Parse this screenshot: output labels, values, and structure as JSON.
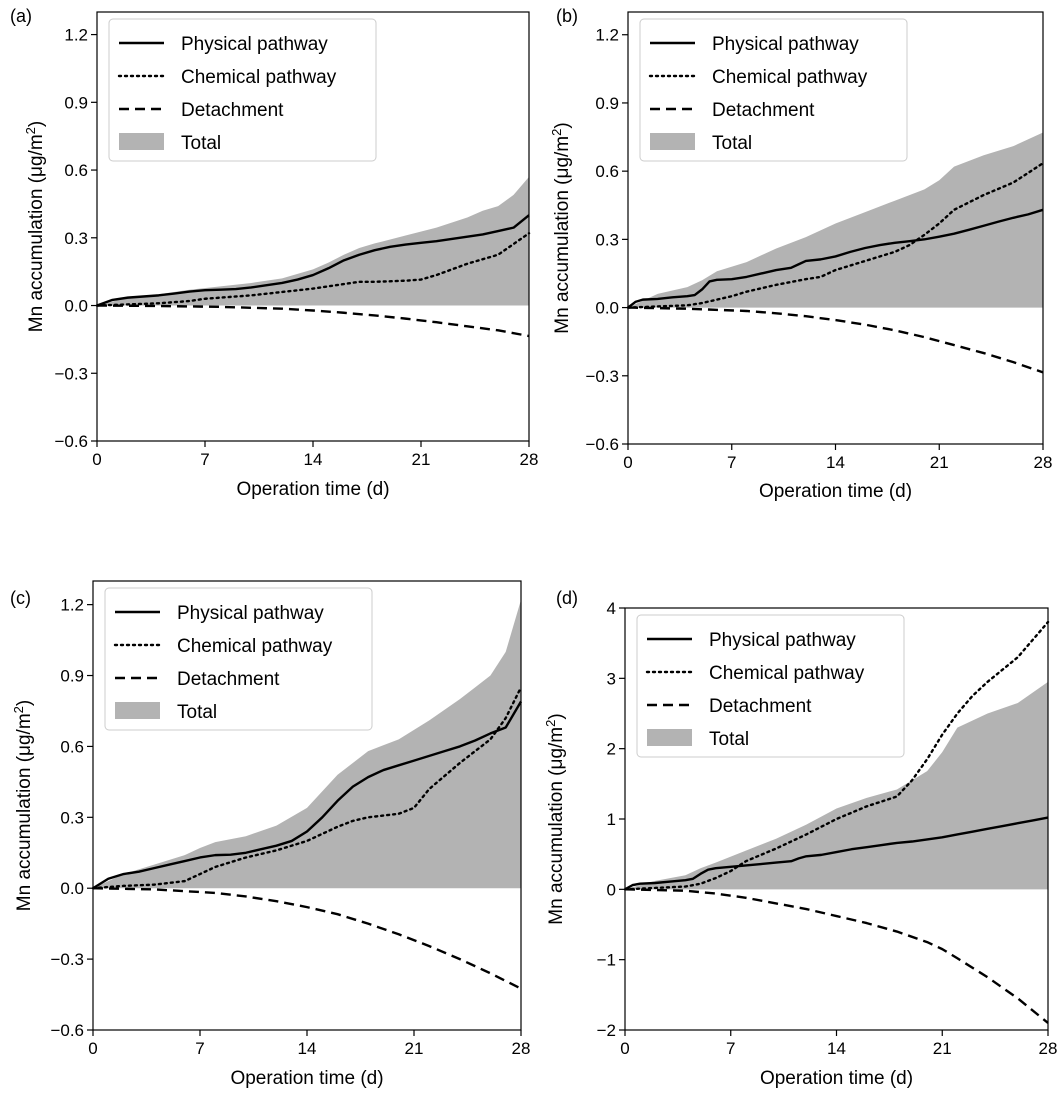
{
  "figure": {
    "colors": {
      "total_fill": "#b3b3b3",
      "line": "#000000",
      "legend_border": "#cccccc"
    }
  },
  "chart_data": [
    {
      "type": "line",
      "panel_label": "(a)",
      "xlabel": "Operation time (d)",
      "ylabel_prefix": "Mn accumulation (μg/m",
      "ylabel_sup": "2",
      "ylabel_suffix": ")",
      "xlim": [
        0,
        28
      ],
      "ylim": [
        -0.6,
        1.3
      ],
      "xticks": [
        0,
        7,
        14,
        21,
        28
      ],
      "xtick_labels": [
        "0",
        "7",
        "14",
        "21",
        "28"
      ],
      "yticks": [
        -0.6,
        -0.3,
        0.0,
        0.3,
        0.6,
        0.9,
        1.2
      ],
      "ytick_labels": [
        "−0.6",
        "−0.3",
        "0.0",
        "0.3",
        "0.6",
        "0.9",
        "1.2"
      ],
      "legend_position": "top-left",
      "grid": false,
      "series": [
        {
          "name": "Physical pathway",
          "style": "solid",
          "x": [
            0,
            1,
            2,
            3,
            4,
            5,
            6,
            7,
            8,
            9,
            10,
            11,
            12,
            13,
            14,
            15,
            16,
            17,
            18,
            19,
            20,
            21,
            22,
            23,
            24,
            25,
            26,
            27,
            28
          ],
          "y": [
            0,
            0.025,
            0.035,
            0.04,
            0.045,
            0.053,
            0.062,
            0.068,
            0.07,
            0.073,
            0.08,
            0.09,
            0.1,
            0.115,
            0.135,
            0.165,
            0.2,
            0.225,
            0.245,
            0.26,
            0.27,
            0.278,
            0.285,
            0.295,
            0.305,
            0.315,
            0.33,
            0.345,
            0.4
          ]
        },
        {
          "name": "Chemical pathway",
          "style": "dotted",
          "x": [
            0,
            2,
            4,
            6,
            7,
            8,
            10,
            12,
            14,
            16,
            17,
            18,
            20,
            21,
            22,
            24,
            26,
            28
          ],
          "y": [
            0,
            0.005,
            0.01,
            0.02,
            0.03,
            0.035,
            0.045,
            0.06,
            0.075,
            0.095,
            0.105,
            0.105,
            0.11,
            0.115,
            0.135,
            0.185,
            0.225,
            0.32
          ]
        },
        {
          "name": "Detachment",
          "style": "dashed",
          "x": [
            0,
            4,
            8,
            12,
            14,
            16,
            18,
            20,
            22,
            24,
            26,
            28
          ],
          "y": [
            0,
            -0.002,
            -0.006,
            -0.014,
            -0.022,
            -0.032,
            -0.044,
            -0.058,
            -0.074,
            -0.092,
            -0.11,
            -0.135
          ]
        },
        {
          "name": "Total",
          "style": "fill",
          "x": [
            0,
            2,
            4,
            6,
            8,
            10,
            12,
            14,
            15,
            16,
            17,
            18,
            20,
            22,
            24,
            25,
            26,
            27,
            28
          ],
          "y": [
            0,
            0.035,
            0.05,
            0.07,
            0.085,
            0.1,
            0.12,
            0.16,
            0.19,
            0.225,
            0.255,
            0.275,
            0.31,
            0.345,
            0.39,
            0.42,
            0.44,
            0.49,
            0.57
          ]
        }
      ]
    },
    {
      "type": "line",
      "panel_label": "(b)",
      "xlabel": "Operation time (d)",
      "ylabel_prefix": "Mn accumulation (μg/m",
      "ylabel_sup": "2",
      "ylabel_suffix": ")",
      "xlim": [
        0,
        28
      ],
      "ylim": [
        -0.6,
        1.3
      ],
      "xticks": [
        0,
        7,
        14,
        21,
        28
      ],
      "xtick_labels": [
        "0",
        "7",
        "14",
        "21",
        "28"
      ],
      "yticks": [
        -0.6,
        -0.3,
        0.0,
        0.3,
        0.6,
        0.9,
        1.2
      ],
      "ytick_labels": [
        "−0.6",
        "−0.3",
        "0.0",
        "0.3",
        "0.6",
        "0.9",
        "1.2"
      ],
      "legend_position": "top-left",
      "grid": false,
      "series": [
        {
          "name": "Physical pathway",
          "style": "solid",
          "x": [
            0,
            0.5,
            1,
            2,
            3,
            4,
            4.5,
            5,
            5.5,
            6,
            7,
            8,
            9,
            10,
            11,
            11.5,
            12,
            13,
            14,
            15,
            16,
            17,
            18,
            19,
            20,
            21,
            22,
            23,
            24,
            25,
            26,
            27,
            28
          ],
          "y": [
            0,
            0.025,
            0.035,
            0.038,
            0.045,
            0.05,
            0.055,
            0.08,
            0.115,
            0.122,
            0.125,
            0.135,
            0.15,
            0.165,
            0.175,
            0.19,
            0.205,
            0.212,
            0.225,
            0.245,
            0.262,
            0.275,
            0.285,
            0.292,
            0.3,
            0.312,
            0.325,
            0.342,
            0.36,
            0.378,
            0.395,
            0.41,
            0.43
          ]
        },
        {
          "name": "Chemical pathway",
          "style": "dotted",
          "x": [
            0,
            2,
            4,
            5,
            6,
            7,
            8,
            10,
            12,
            13,
            14,
            16,
            18,
            19,
            20,
            21,
            22,
            24,
            26,
            28
          ],
          "y": [
            0,
            0.005,
            0.01,
            0.02,
            0.035,
            0.05,
            0.07,
            0.1,
            0.125,
            0.135,
            0.165,
            0.205,
            0.245,
            0.275,
            0.32,
            0.37,
            0.43,
            0.495,
            0.55,
            0.635
          ]
        },
        {
          "name": "Detachment",
          "style": "dashed",
          "x": [
            0,
            4,
            8,
            10,
            12,
            14,
            16,
            18,
            20,
            22,
            24,
            26,
            28
          ],
          "y": [
            0,
            -0.005,
            -0.015,
            -0.025,
            -0.038,
            -0.055,
            -0.075,
            -0.1,
            -0.13,
            -0.165,
            -0.2,
            -0.24,
            -0.285
          ]
        },
        {
          "name": "Total",
          "style": "fill",
          "x": [
            0,
            2,
            4,
            5,
            6,
            8,
            10,
            12,
            14,
            16,
            18,
            20,
            21,
            22,
            24,
            26,
            28
          ],
          "y": [
            0,
            0.06,
            0.09,
            0.12,
            0.16,
            0.2,
            0.26,
            0.31,
            0.37,
            0.42,
            0.47,
            0.52,
            0.56,
            0.62,
            0.67,
            0.71,
            0.77
          ]
        }
      ]
    },
    {
      "type": "line",
      "panel_label": "(c)",
      "xlabel": "Operation time (d)",
      "ylabel_prefix": "Mn accumulation (μg/m",
      "ylabel_sup": "2",
      "ylabel_suffix": ")",
      "xlim": [
        0,
        28
      ],
      "ylim": [
        -0.6,
        1.3
      ],
      "xticks": [
        0,
        7,
        14,
        21,
        28
      ],
      "xtick_labels": [
        "0",
        "7",
        "14",
        "21",
        "28"
      ],
      "yticks": [
        -0.6,
        -0.3,
        0.0,
        0.3,
        0.6,
        0.9,
        1.2
      ],
      "ytick_labels": [
        "−0.6",
        "−0.3",
        "0.0",
        "0.3",
        "0.6",
        "0.9",
        "1.2"
      ],
      "legend_position": "top-left",
      "grid": false,
      "series": [
        {
          "name": "Physical pathway",
          "style": "solid",
          "x": [
            0,
            1,
            2,
            3,
            4,
            5,
            6,
            7,
            8,
            9,
            10,
            11,
            12,
            13,
            14,
            15,
            16,
            17,
            18,
            19,
            20,
            21,
            22,
            23,
            24,
            25,
            26,
            27,
            28
          ],
          "y": [
            0,
            0.04,
            0.06,
            0.07,
            0.085,
            0.1,
            0.115,
            0.13,
            0.14,
            0.142,
            0.15,
            0.165,
            0.18,
            0.2,
            0.24,
            0.3,
            0.37,
            0.43,
            0.47,
            0.5,
            0.52,
            0.54,
            0.56,
            0.58,
            0.6,
            0.625,
            0.655,
            0.68,
            0.79
          ]
        },
        {
          "name": "Chemical pathway",
          "style": "dotted",
          "x": [
            0,
            2,
            4,
            6,
            7,
            8,
            10,
            12,
            14,
            16,
            17,
            18,
            20,
            21,
            22,
            24,
            26,
            27,
            28
          ],
          "y": [
            0,
            0.01,
            0.015,
            0.03,
            0.06,
            0.09,
            0.13,
            0.16,
            0.2,
            0.26,
            0.285,
            0.3,
            0.315,
            0.34,
            0.42,
            0.53,
            0.63,
            0.72,
            0.85
          ]
        },
        {
          "name": "Detachment",
          "style": "dashed",
          "x": [
            0,
            4,
            8,
            10,
            12,
            14,
            16,
            18,
            20,
            22,
            24,
            26,
            28
          ],
          "y": [
            0,
            -0.005,
            -0.02,
            -0.035,
            -0.055,
            -0.08,
            -0.11,
            -0.15,
            -0.195,
            -0.245,
            -0.3,
            -0.36,
            -0.425
          ]
        },
        {
          "name": "Total",
          "style": "fill",
          "x": [
            0,
            2,
            4,
            6,
            7,
            8,
            10,
            12,
            14,
            16,
            18,
            20,
            22,
            24,
            25,
            26,
            27,
            28
          ],
          "y": [
            0,
            0.06,
            0.1,
            0.14,
            0.17,
            0.195,
            0.22,
            0.265,
            0.34,
            0.48,
            0.58,
            0.63,
            0.71,
            0.8,
            0.85,
            0.9,
            1.0,
            1.22
          ]
        }
      ]
    },
    {
      "type": "line",
      "panel_label": "(d)",
      "xlabel": "Operation time (d)",
      "ylabel_prefix": "Mn accumulation (μg/m",
      "ylabel_sup": "2",
      "ylabel_suffix": ")",
      "xlim": [
        0,
        28
      ],
      "ylim": [
        -2,
        4
      ],
      "xticks": [
        0,
        7,
        14,
        21,
        28
      ],
      "xtick_labels": [
        "0",
        "7",
        "14",
        "21",
        "28"
      ],
      "yticks": [
        -2,
        -1,
        0,
        1,
        2,
        3,
        4
      ],
      "ytick_labels": [
        "−2",
        "−1",
        "0",
        "1",
        "2",
        "3",
        "4"
      ],
      "legend_position": "top-left",
      "grid": false,
      "series": [
        {
          "name": "Physical pathway",
          "style": "solid",
          "x": [
            0,
            0.5,
            1,
            2,
            3,
            4,
            4.5,
            5,
            5.5,
            6,
            7,
            8,
            9,
            10,
            11,
            11.5,
            12,
            13,
            14,
            15,
            16,
            17,
            18,
            19,
            20,
            21,
            22,
            23,
            24,
            25,
            26,
            27,
            28
          ],
          "y": [
            0,
            0.06,
            0.08,
            0.09,
            0.11,
            0.13,
            0.15,
            0.22,
            0.28,
            0.3,
            0.32,
            0.34,
            0.36,
            0.38,
            0.4,
            0.44,
            0.47,
            0.49,
            0.53,
            0.57,
            0.6,
            0.63,
            0.66,
            0.68,
            0.71,
            0.74,
            0.78,
            0.82,
            0.86,
            0.9,
            0.94,
            0.98,
            1.02
          ]
        },
        {
          "name": "Chemical pathway",
          "style": "dotted",
          "x": [
            0,
            2,
            4,
            5,
            6,
            7,
            8,
            10,
            12,
            14,
            16,
            18,
            19,
            20,
            21,
            22,
            23,
            24,
            26,
            28
          ],
          "y": [
            0,
            0.02,
            0.04,
            0.08,
            0.16,
            0.26,
            0.4,
            0.58,
            0.78,
            1.0,
            1.18,
            1.32,
            1.55,
            1.85,
            2.2,
            2.5,
            2.75,
            2.95,
            3.3,
            3.8
          ]
        },
        {
          "name": "Detachment",
          "style": "dashed",
          "x": [
            0,
            4,
            6,
            8,
            10,
            12,
            14,
            16,
            18,
            20,
            21,
            22,
            24,
            26,
            28
          ],
          "y": [
            0,
            -0.02,
            -0.06,
            -0.12,
            -0.2,
            -0.28,
            -0.38,
            -0.48,
            -0.6,
            -0.75,
            -0.85,
            -0.98,
            -1.25,
            -1.55,
            -1.9
          ]
        },
        {
          "name": "Total",
          "style": "fill",
          "x": [
            0,
            2,
            4,
            5,
            6,
            8,
            10,
            12,
            14,
            16,
            18,
            20,
            21,
            22,
            24,
            26,
            28
          ],
          "y": [
            0,
            0.12,
            0.2,
            0.3,
            0.38,
            0.55,
            0.72,
            0.92,
            1.15,
            1.3,
            1.42,
            1.68,
            1.95,
            2.3,
            2.5,
            2.65,
            2.95
          ]
        }
      ]
    }
  ]
}
